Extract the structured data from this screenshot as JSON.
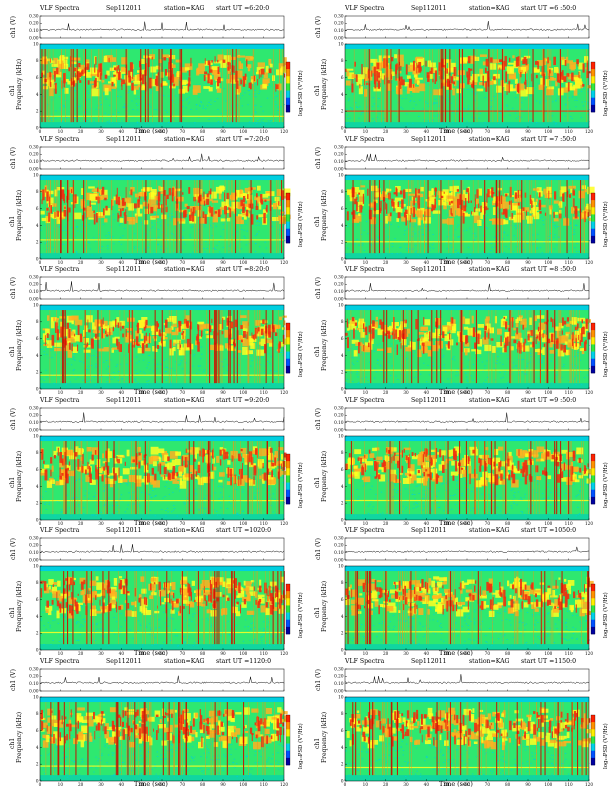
{
  "chart_data": [
    {
      "type": "heatmap",
      "title": "VLF Spectra",
      "date": "Sep112011",
      "station": "station=KAG",
      "start": "start  UT =6:20:0",
      "xlabel": "Time  (sec)",
      "ylabel_top": "ch1 (V)",
      "ylabel_bottom": "Frequency (kHz)",
      "channel": "ch1",
      "cbar_label": "log₁₀PSD (V²/Hz)",
      "xlim": [
        0,
        120
      ],
      "ylim": [
        0,
        10
      ],
      "ylim_top": [
        0.0,
        0.3
      ],
      "xticks": [
        "0",
        "10",
        "20",
        "30",
        "40",
        "50",
        "60",
        "70",
        "80",
        "90",
        "100",
        "110",
        "120"
      ],
      "yticks": [
        "0",
        "2",
        "4",
        "6",
        "8",
        "10"
      ],
      "yticks_top": [
        "0.00",
        "0.10",
        "0.20",
        "0.30"
      ]
    },
    {
      "type": "heatmap",
      "title": "VLF Spectra",
      "date": "Sep112011",
      "station": "station=KAG",
      "start": "start  UT =6 :50:0",
      "xlabel": "Time  (sec)",
      "ylabel_top": "ch1 (V)",
      "ylabel_bottom": "Frequency (kHz)",
      "channel": "ch1",
      "cbar_label": "log₁₀PSD (V²/Hz)",
      "xlim": [
        0,
        120
      ],
      "ylim": [
        0,
        10
      ],
      "ylim_top": [
        0.0,
        0.3
      ],
      "xticks": [
        "0",
        "10",
        "20",
        "30",
        "40",
        "50",
        "60",
        "70",
        "80",
        "90",
        "100",
        "110",
        "120"
      ],
      "yticks": [
        "0",
        "2",
        "4",
        "6",
        "8",
        "10"
      ],
      "yticks_top": [
        "0.00",
        "0.10",
        "0.20",
        "0.30"
      ]
    },
    {
      "type": "heatmap",
      "title": "VLF Spectra",
      "date": "Sep112011",
      "station": "station=KAG",
      "start": "start  UT =7:20:0",
      "xlabel": "Time  (sec)",
      "ylabel_top": "ch1 (V)",
      "ylabel_bottom": "Frequency (kHz)",
      "channel": "ch1",
      "cbar_label": "log₁₀PSD (V²/Hz)",
      "xlim": [
        0,
        120
      ],
      "ylim": [
        0,
        10
      ],
      "ylim_top": [
        0.0,
        0.3
      ],
      "xticks": [
        "0",
        "10",
        "20",
        "30",
        "40",
        "50",
        "60",
        "70",
        "80",
        "90",
        "100",
        "110",
        "120"
      ],
      "yticks": [
        "0",
        "2",
        "4",
        "6",
        "8",
        "10"
      ],
      "yticks_top": [
        "0.00",
        "0.10",
        "0.20",
        "0.30"
      ]
    },
    {
      "type": "heatmap",
      "title": "VLF Spectra",
      "date": "Sep112011",
      "station": "station=KAG",
      "start": "start  UT =7 :50:0",
      "xlabel": "Time  (sec)",
      "ylabel_top": "ch1 (V)",
      "ylabel_bottom": "Frequency (kHz)",
      "channel": "ch1",
      "cbar_label": "log₁₀PSD (V²/Hz)",
      "xlim": [
        0,
        120
      ],
      "ylim": [
        0,
        10
      ],
      "ylim_top": [
        0.0,
        0.3
      ],
      "xticks": [
        "0",
        "10",
        "20",
        "30",
        "40",
        "50",
        "60",
        "70",
        "80",
        "90",
        "100",
        "110",
        "120"
      ],
      "yticks": [
        "0",
        "2",
        "4",
        "6",
        "8",
        "10"
      ],
      "yticks_top": [
        "0.00",
        "0.10",
        "0.20",
        "0.30"
      ]
    },
    {
      "type": "heatmap",
      "title": "VLF Spectra",
      "date": "Sep112011",
      "station": "station=KAG",
      "start": "start  UT =8:20:0",
      "xlabel": "Time  (sec)",
      "ylabel_top": "ch1 (V)",
      "ylabel_bottom": "Frequency (kHz)",
      "channel": "ch1",
      "cbar_label": "log₁₀PSD (V²/Hz)",
      "xlim": [
        0,
        120
      ],
      "ylim": [
        0,
        10
      ],
      "ylim_top": [
        0.0,
        0.3
      ],
      "xticks": [
        "0",
        "10",
        "20",
        "30",
        "40",
        "50",
        "60",
        "70",
        "80",
        "90",
        "100",
        "110",
        "120"
      ],
      "yticks": [
        "0",
        "2",
        "4",
        "6",
        "8",
        "10"
      ],
      "yticks_top": [
        "0.00",
        "0.10",
        "0.20",
        "0.30"
      ]
    },
    {
      "type": "heatmap",
      "title": "VLF Spectra",
      "date": "Sep112011",
      "station": "station=KAG",
      "start": "start  UT =8 :50:0",
      "xlabel": "Time  (sec)",
      "ylabel_top": "ch1 (V)",
      "ylabel_bottom": "Frequency (kHz)",
      "channel": "ch1",
      "cbar_label": "log₁₀PSD (V²/Hz)",
      "xlim": [
        0,
        120
      ],
      "ylim": [
        0,
        10
      ],
      "ylim_top": [
        0.0,
        0.3
      ],
      "xticks": [
        "0",
        "10",
        "20",
        "30",
        "40",
        "50",
        "60",
        "70",
        "80",
        "90",
        "100",
        "110",
        "120"
      ],
      "yticks": [
        "0",
        "2",
        "4",
        "6",
        "8",
        "10"
      ],
      "yticks_top": [
        "0.00",
        "0.10",
        "0.20",
        "0.30"
      ]
    },
    {
      "type": "heatmap",
      "title": "VLF Spectra",
      "date": "Sep112011",
      "station": "station=KAG",
      "start": "start  UT =9:20:0",
      "xlabel": "Time  (sec)",
      "ylabel_top": "ch1 (V)",
      "ylabel_bottom": "Frequency (kHz)",
      "channel": "ch1",
      "cbar_label": "log₁₀PSD (V²/Hz)",
      "xlim": [
        0,
        120
      ],
      "ylim": [
        0,
        10
      ],
      "ylim_top": [
        0.0,
        0.3
      ],
      "xticks": [
        "0",
        "10",
        "20",
        "30",
        "40",
        "50",
        "60",
        "70",
        "80",
        "90",
        "100",
        "110",
        "120"
      ],
      "yticks": [
        "0",
        "2",
        "4",
        "6",
        "8",
        "10"
      ],
      "yticks_top": [
        "0.00",
        "0.10",
        "0.20",
        "0.30"
      ]
    },
    {
      "type": "heatmap",
      "title": "VLF Spectra",
      "date": "Sep112011",
      "station": "station=KAG",
      "start": "start  UT =9 :50:0",
      "xlabel": "Time  (sec)",
      "ylabel_top": "ch1 (V)",
      "ylabel_bottom": "Frequency (kHz)",
      "channel": "ch1",
      "cbar_label": "log₁₀PSD (V²/Hz)",
      "xlim": [
        0,
        120
      ],
      "ylim": [
        0,
        10
      ],
      "ylim_top": [
        0.0,
        0.3
      ],
      "xticks": [
        "0",
        "10",
        "20",
        "30",
        "40",
        "50",
        "60",
        "70",
        "80",
        "90",
        "100",
        "110",
        "120"
      ],
      "yticks": [
        "0",
        "2",
        "4",
        "6",
        "8",
        "10"
      ],
      "yticks_top": [
        "0.00",
        "0.10",
        "0.20",
        "0.30"
      ]
    },
    {
      "type": "heatmap",
      "title": "VLF Spectra",
      "date": "Sep112011",
      "station": "station=KAG",
      "start": "start  UT =1020:0",
      "xlabel": "Time  (sec)",
      "ylabel_top": "ch1 (V)",
      "ylabel_bottom": "Frequency (kHz)",
      "channel": "ch1",
      "cbar_label": "log₁₀PSD (V²/Hz)",
      "xlim": [
        0,
        120
      ],
      "ylim": [
        0,
        10
      ],
      "ylim_top": [
        0.0,
        0.3
      ],
      "xticks": [
        "0",
        "10",
        "20",
        "30",
        "40",
        "50",
        "60",
        "70",
        "80",
        "90",
        "100",
        "110",
        "120"
      ],
      "yticks": [
        "0",
        "2",
        "4",
        "6",
        "8",
        "10"
      ],
      "yticks_top": [
        "0.00",
        "0.10",
        "0.20",
        "0.30"
      ]
    },
    {
      "type": "heatmap",
      "title": "VLF Spectra",
      "date": "Sep112011",
      "station": "station=KAG",
      "start": "start  UT =1050:0",
      "xlabel": "Time  (sec)",
      "ylabel_top": "ch1 (V)",
      "ylabel_bottom": "Frequency (kHz)",
      "channel": "ch1",
      "cbar_label": "log₁₀PSD (V²/Hz)",
      "xlim": [
        0,
        120
      ],
      "ylim": [
        0,
        10
      ],
      "ylim_top": [
        0.0,
        0.3
      ],
      "xticks": [
        "0",
        "10",
        "20",
        "30",
        "40",
        "50",
        "60",
        "70",
        "80",
        "90",
        "100",
        "110",
        "120"
      ],
      "yticks": [
        "0",
        "2",
        "4",
        "6",
        "8",
        "10"
      ],
      "yticks_top": [
        "0.00",
        "0.10",
        "0.20",
        "0.30"
      ]
    },
    {
      "type": "heatmap",
      "title": "VLF Spectra",
      "date": "Sep112011",
      "station": "station=KAG",
      "start": "start  UT =1120:0",
      "xlabel": "Time  (sec)",
      "ylabel_top": "ch1 (V)",
      "ylabel_bottom": "Frequency (kHz)",
      "channel": "ch1",
      "cbar_label": "log₁₀PSD (V²/Hz)",
      "xlim": [
        0,
        120
      ],
      "ylim": [
        0,
        10
      ],
      "ylim_top": [
        0.0,
        0.3
      ],
      "xticks": [
        "0",
        "10",
        "20",
        "30",
        "40",
        "50",
        "60",
        "70",
        "80",
        "90",
        "100",
        "110",
        "120"
      ],
      "yticks": [
        "0",
        "2",
        "4",
        "6",
        "8",
        "10"
      ],
      "yticks_top": [
        "0.00",
        "0.10",
        "0.20",
        "0.30"
      ]
    },
    {
      "type": "heatmap",
      "title": "VLF Spectra",
      "date": "Sep112011",
      "station": "station=KAG",
      "start": "start  UT =1150:0",
      "xlabel": "Time  (sec)",
      "ylabel_top": "ch1 (V)",
      "ylabel_bottom": "Frequency (kHz)",
      "channel": "ch1",
      "cbar_label": "log₁₀PSD (V²/Hz)",
      "xlim": [
        0,
        120
      ],
      "ylim": [
        0,
        10
      ],
      "ylim_top": [
        0.0,
        0.3
      ],
      "xticks": [
        "0",
        "10",
        "20",
        "30",
        "40",
        "50",
        "60",
        "70",
        "80",
        "90",
        "100",
        "110",
        "120"
      ],
      "yticks": [
        "0",
        "2",
        "4",
        "6",
        "8",
        "10"
      ],
      "yticks_top": [
        "0.00",
        "0.10",
        "0.20",
        "0.30"
      ]
    }
  ],
  "colors": {
    "background_noise": "#00cfe0",
    "low_band": "#2ee870",
    "mid_band": "#ffff20",
    "high_band": "#f03010",
    "colorbar": [
      "#ff2000",
      "#ff9000",
      "#ffee00",
      "#30e840",
      "#00d0e8",
      "#0050ff",
      "#0000a0"
    ]
  }
}
